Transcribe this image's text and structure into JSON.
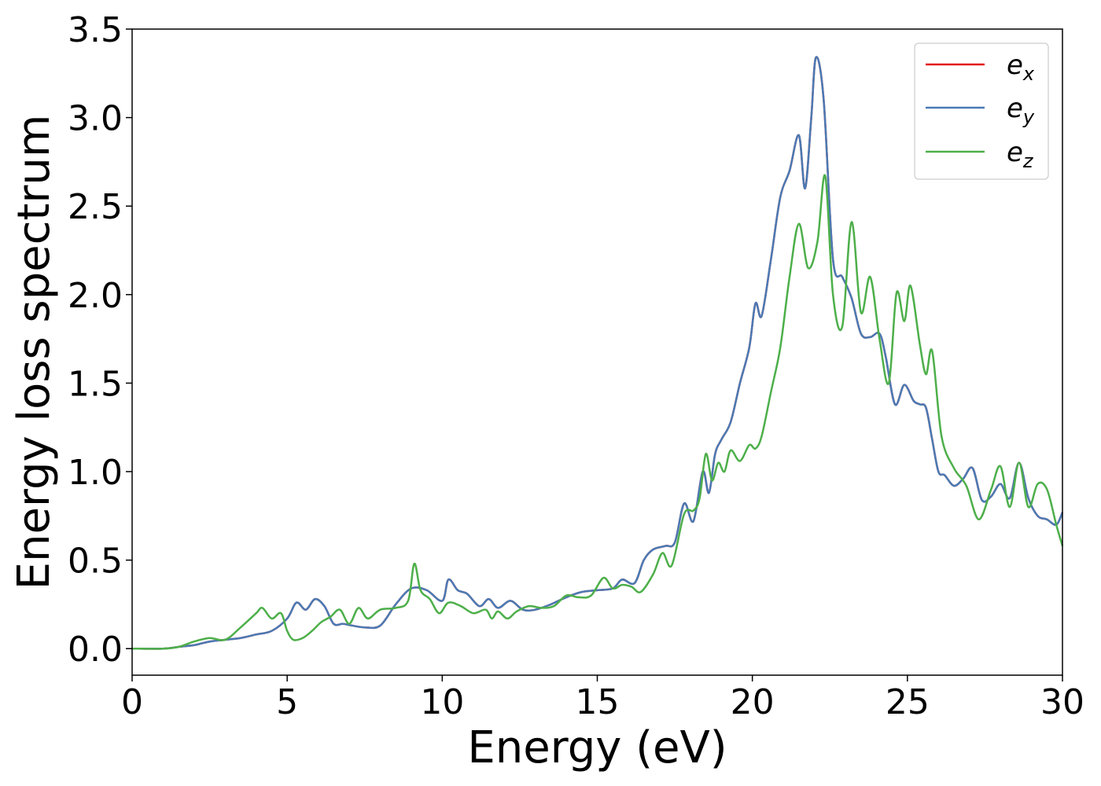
{
  "chart_data": {
    "type": "line",
    "title": "",
    "xlabel": "Energy (eV)",
    "ylabel": "Energy loss spectrum",
    "xlim": [
      0,
      30
    ],
    "ylim": [
      -0.15,
      3.5
    ],
    "xticks": [
      0,
      5,
      10,
      15,
      20,
      25,
      30
    ],
    "xtick_labels": [
      "0",
      "5",
      "10",
      "15",
      "20",
      "25",
      "30"
    ],
    "yticks": [
      0.0,
      0.5,
      1.0,
      1.5,
      2.0,
      2.5,
      3.0,
      3.5
    ],
    "ytick_labels": [
      "0.0",
      "0.5",
      "1.0",
      "1.5",
      "2.0",
      "2.5",
      "3.0",
      "3.5"
    ],
    "grid": false,
    "legend_position": "top-right",
    "series": [
      {
        "name": "e_x",
        "legend_main": "e",
        "legend_sub": "x",
        "color": "#e41a1c",
        "x": [
          0,
          1,
          1.5,
          2,
          2.5,
          3,
          3.5,
          4,
          4.5,
          5,
          5.3,
          5.6,
          5.9,
          6.2,
          6.5,
          6.8,
          7.1,
          7.5,
          8,
          8.5,
          9,
          9.5,
          10,
          10.2,
          10.5,
          10.8,
          11.2,
          11.5,
          11.8,
          12.2,
          12.6,
          13,
          13.5,
          14,
          14.5,
          15,
          15.5,
          15.8,
          16.2,
          16.5,
          16.8,
          17.2,
          17.5,
          17.8,
          18.1,
          18.4,
          18.6,
          18.8,
          19,
          19.3,
          19.6,
          19.9,
          20.1,
          20.3,
          20.6,
          20.9,
          21.2,
          21.5,
          21.7,
          21.9,
          22.05,
          22.3,
          22.6,
          22.9,
          23.2,
          23.5,
          23.8,
          24.1,
          24.3,
          24.6,
          24.9,
          25.2,
          25.4,
          25.6,
          25.8,
          26,
          26.2,
          26.5,
          26.8,
          27.1,
          27.4,
          27.7,
          28,
          28.3,
          28.6,
          28.9,
          29.2,
          29.5,
          29.8,
          30
        ],
        "values": [
          0,
          0,
          0.01,
          0.02,
          0.04,
          0.05,
          0.06,
          0.08,
          0.1,
          0.17,
          0.26,
          0.22,
          0.28,
          0.24,
          0.14,
          0.14,
          0.13,
          0.12,
          0.13,
          0.25,
          0.34,
          0.33,
          0.27,
          0.39,
          0.33,
          0.31,
          0.24,
          0.28,
          0.23,
          0.27,
          0.22,
          0.22,
          0.25,
          0.29,
          0.32,
          0.33,
          0.34,
          0.39,
          0.37,
          0.5,
          0.56,
          0.58,
          0.6,
          0.82,
          0.72,
          1.0,
          0.88,
          1.1,
          1.18,
          1.28,
          1.5,
          1.7,
          1.95,
          1.88,
          2.2,
          2.55,
          2.7,
          2.9,
          2.6,
          3.0,
          3.34,
          3.1,
          2.2,
          2.1,
          1.98,
          1.78,
          1.76,
          1.78,
          1.65,
          1.38,
          1.49,
          1.4,
          1.38,
          1.36,
          1.18,
          1.0,
          0.98,
          0.92,
          0.96,
          1.02,
          0.84,
          0.86,
          0.93,
          0.85,
          1.05,
          0.85,
          0.75,
          0.73,
          0.7,
          0.77
        ]
      },
      {
        "name": "e_y",
        "legend_main": "e",
        "legend_sub": "y",
        "color": "#4a7ab4",
        "x": [
          0,
          1,
          1.5,
          2,
          2.5,
          3,
          3.5,
          4,
          4.5,
          5,
          5.3,
          5.6,
          5.9,
          6.2,
          6.5,
          6.8,
          7.1,
          7.5,
          8,
          8.5,
          9,
          9.5,
          10,
          10.2,
          10.5,
          10.8,
          11.2,
          11.5,
          11.8,
          12.2,
          12.6,
          13,
          13.5,
          14,
          14.5,
          15,
          15.5,
          15.8,
          16.2,
          16.5,
          16.8,
          17.2,
          17.5,
          17.8,
          18.1,
          18.4,
          18.6,
          18.8,
          19,
          19.3,
          19.6,
          19.9,
          20.1,
          20.3,
          20.6,
          20.9,
          21.2,
          21.5,
          21.7,
          21.9,
          22.05,
          22.3,
          22.6,
          22.9,
          23.2,
          23.5,
          23.8,
          24.1,
          24.3,
          24.6,
          24.9,
          25.2,
          25.4,
          25.6,
          25.8,
          26,
          26.2,
          26.5,
          26.8,
          27.1,
          27.4,
          27.7,
          28,
          28.3,
          28.6,
          28.9,
          29.2,
          29.5,
          29.8,
          30
        ],
        "values": [
          0,
          0,
          0.01,
          0.02,
          0.04,
          0.05,
          0.06,
          0.08,
          0.1,
          0.17,
          0.26,
          0.22,
          0.28,
          0.24,
          0.14,
          0.14,
          0.13,
          0.12,
          0.13,
          0.25,
          0.34,
          0.33,
          0.27,
          0.39,
          0.33,
          0.31,
          0.24,
          0.28,
          0.23,
          0.27,
          0.22,
          0.22,
          0.25,
          0.29,
          0.32,
          0.33,
          0.34,
          0.39,
          0.37,
          0.5,
          0.56,
          0.58,
          0.6,
          0.82,
          0.72,
          1.0,
          0.88,
          1.1,
          1.18,
          1.28,
          1.5,
          1.7,
          1.95,
          1.88,
          2.2,
          2.55,
          2.7,
          2.9,
          2.6,
          3.0,
          3.34,
          3.1,
          2.2,
          2.1,
          1.98,
          1.78,
          1.76,
          1.78,
          1.65,
          1.38,
          1.49,
          1.4,
          1.38,
          1.36,
          1.18,
          1.0,
          0.98,
          0.92,
          0.96,
          1.02,
          0.84,
          0.86,
          0.93,
          0.85,
          1.05,
          0.85,
          0.75,
          0.73,
          0.7,
          0.77
        ]
      },
      {
        "name": "e_z",
        "legend_main": "e",
        "legend_sub": "z",
        "color": "#4daf4a",
        "x": [
          0,
          1,
          1.5,
          2,
          2.5,
          3,
          3.5,
          4,
          4.2,
          4.5,
          4.8,
          5,
          5.2,
          5.5,
          5.8,
          6.1,
          6.4,
          6.7,
          7,
          7.3,
          7.6,
          8,
          8.5,
          8.9,
          9.1,
          9.3,
          9.6,
          9.9,
          10.2,
          10.6,
          11,
          11.4,
          11.6,
          11.8,
          12.1,
          12.4,
          12.8,
          13.2,
          13.6,
          14,
          14.4,
          14.8,
          15.2,
          15.5,
          15.8,
          16.1,
          16.4,
          16.8,
          17.1,
          17.4,
          17.8,
          18.1,
          18.3,
          18.5,
          18.7,
          18.9,
          19.1,
          19.3,
          19.6,
          19.9,
          20.1,
          20.3,
          20.6,
          20.9,
          21.2,
          21.5,
          21.8,
          22.1,
          22.35,
          22.6,
          22.9,
          23.2,
          23.5,
          23.8,
          24.1,
          24.4,
          24.65,
          24.9,
          25.1,
          25.4,
          25.6,
          25.8,
          26.1,
          26.5,
          26.9,
          27.3,
          27.7,
          28.0,
          28.3,
          28.6,
          28.9,
          29.2,
          29.5,
          29.8,
          30
        ],
        "values": [
          0,
          0,
          0.01,
          0.04,
          0.06,
          0.05,
          0.12,
          0.2,
          0.23,
          0.17,
          0.2,
          0.1,
          0.05,
          0.06,
          0.1,
          0.15,
          0.18,
          0.22,
          0.14,
          0.23,
          0.17,
          0.22,
          0.23,
          0.27,
          0.48,
          0.33,
          0.28,
          0.2,
          0.26,
          0.24,
          0.2,
          0.22,
          0.17,
          0.21,
          0.17,
          0.21,
          0.24,
          0.23,
          0.24,
          0.3,
          0.29,
          0.3,
          0.4,
          0.34,
          0.36,
          0.35,
          0.32,
          0.42,
          0.54,
          0.47,
          0.76,
          0.78,
          0.85,
          1.1,
          0.95,
          1.05,
          1.0,
          1.12,
          1.06,
          1.15,
          1.13,
          1.2,
          1.45,
          1.7,
          2.1,
          2.4,
          2.15,
          2.3,
          2.67,
          2.0,
          1.82,
          2.41,
          1.9,
          2.1,
          1.75,
          1.5,
          2.01,
          1.85,
          2.05,
          1.72,
          1.55,
          1.68,
          1.2,
          1.02,
          0.92,
          0.73,
          0.9,
          1.03,
          0.8,
          1.05,
          0.8,
          0.93,
          0.9,
          0.7,
          0.58
        ]
      }
    ]
  }
}
